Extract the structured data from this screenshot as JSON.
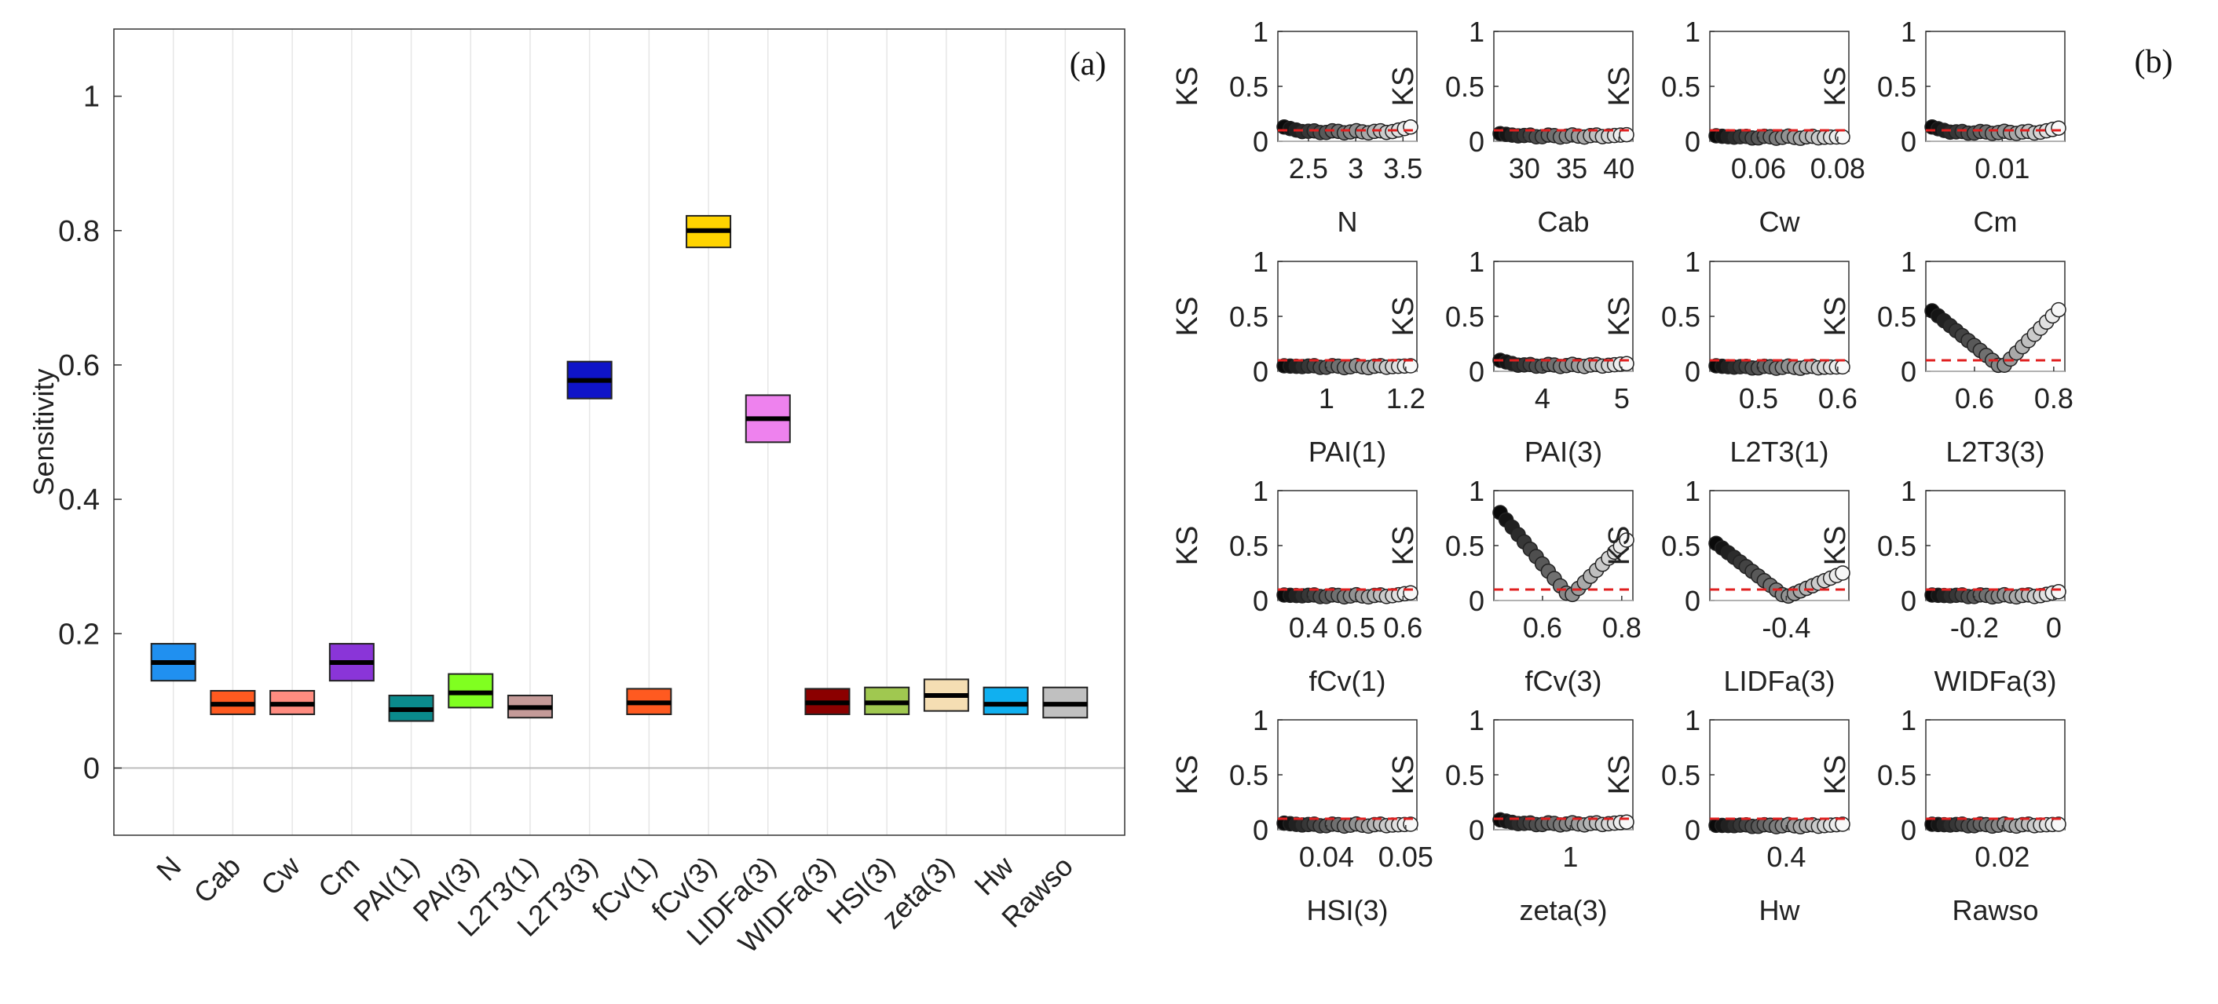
{
  "chart_data": [
    {
      "type": "box",
      "panel_label": "(a)",
      "ylabel": "Sensitivity",
      "ylim": [
        -0.1,
        1.1
      ],
      "yticks": [
        0,
        0.2,
        0.4,
        0.6,
        0.8,
        1
      ],
      "ytick_labels": [
        "0",
        "0.2",
        "0.4",
        "0.6",
        "0.8",
        "1"
      ],
      "grid": "vertical",
      "categories": [
        "N",
        "Cab",
        "Cw",
        "Cm",
        "PAI(1)",
        "PAI(3)",
        "L2T3(1)",
        "L2T3(3)",
        "fCv(1)",
        "fCv(3)",
        "LIDFa(3)",
        "WIDFa(3)",
        "HSI(3)",
        "zeta(3)",
        "Hw",
        "Rawso"
      ],
      "boxes": [
        {
          "low": 0.13,
          "median": 0.157,
          "high": 0.185,
          "color": "#2090f0"
        },
        {
          "low": 0.08,
          "median": 0.095,
          "high": 0.115,
          "color": "#ff5a20"
        },
        {
          "low": 0.08,
          "median": 0.095,
          "high": 0.115,
          "color": "#ff8c80"
        },
        {
          "low": 0.13,
          "median": 0.157,
          "high": 0.185,
          "color": "#8a35d8"
        },
        {
          "low": 0.07,
          "median": 0.087,
          "high": 0.108,
          "color": "#0a8a8c"
        },
        {
          "low": 0.09,
          "median": 0.112,
          "high": 0.14,
          "color": "#80ff20"
        },
        {
          "low": 0.075,
          "median": 0.09,
          "high": 0.108,
          "color": "#c49a98"
        },
        {
          "low": 0.55,
          "median": 0.577,
          "high": 0.605,
          "color": "#0f14c8"
        },
        {
          "low": 0.08,
          "median": 0.097,
          "high": 0.118,
          "color": "#ff5a20"
        },
        {
          "low": 0.775,
          "median": 0.8,
          "high": 0.822,
          "color": "#ffd400"
        },
        {
          "low": 0.485,
          "median": 0.52,
          "high": 0.555,
          "color": "#ee82ee"
        },
        {
          "low": 0.08,
          "median": 0.097,
          "high": 0.118,
          "color": "#8b0000"
        },
        {
          "low": 0.08,
          "median": 0.097,
          "high": 0.12,
          "color": "#a0c850"
        },
        {
          "low": 0.085,
          "median": 0.108,
          "high": 0.132,
          "color": "#f5deb3"
        },
        {
          "low": 0.08,
          "median": 0.095,
          "high": 0.12,
          "color": "#10b0f0"
        },
        {
          "low": 0.075,
          "median": 0.095,
          "high": 0.12,
          "color": "#c0c0c0"
        }
      ]
    },
    {
      "type": "scatter",
      "panel_label": "(b)",
      "ylabel": "KS",
      "ylim": [
        0,
        1
      ],
      "yticks": [
        "0",
        "0.5",
        "1"
      ],
      "threshold": 0.1,
      "threshold_color": "#e02020",
      "subplots": [
        {
          "name": "N",
          "xticks": [
            "2.5",
            "3",
            "3.5"
          ],
          "shape": "flat",
          "start": 0.13,
          "end": 0.13
        },
        {
          "name": "Cab",
          "xticks": [
            "30",
            "35",
            "40"
          ],
          "shape": "flat",
          "start": 0.07,
          "end": 0.06
        },
        {
          "name": "Cw",
          "xticks": [
            "0.06",
            "0.08"
          ],
          "shape": "flat",
          "start": 0.05,
          "end": 0.04
        },
        {
          "name": "Cm",
          "xticks": [
            "0.01"
          ],
          "shape": "flat",
          "start": 0.13,
          "end": 0.12
        },
        {
          "name": "PAI(1)",
          "xticks": [
            "1",
            "1.2"
          ],
          "shape": "flat",
          "start": 0.05,
          "end": 0.05
        },
        {
          "name": "PAI(3)",
          "xticks": [
            "4",
            "5"
          ],
          "shape": "flat",
          "start": 0.1,
          "end": 0.07
        },
        {
          "name": "L2T3(1)",
          "xticks": [
            "0.5",
            "0.6"
          ],
          "shape": "flat",
          "start": 0.05,
          "end": 0.04
        },
        {
          "name": "L2T3(3)",
          "xticks": [
            "0.6",
            "0.8"
          ],
          "shape": "v",
          "start": 0.55,
          "end": 0.56
        },
        {
          "name": "fCv(1)",
          "xticks": [
            "0.4",
            "0.5",
            "0.6"
          ],
          "shape": "flat",
          "start": 0.05,
          "end": 0.07
        },
        {
          "name": "fCv(3)",
          "xticks": [
            "0.6",
            "0.8"
          ],
          "shape": "v",
          "start": 0.8,
          "end": 0.55
        },
        {
          "name": "LIDFa(3)",
          "xticks": [
            "-0.4"
          ],
          "shape": "v",
          "start": 0.52,
          "end": 0.25
        },
        {
          "name": "WIDFa(3)",
          "xticks": [
            "-0.2",
            "0"
          ],
          "shape": "flat",
          "start": 0.05,
          "end": 0.08
        },
        {
          "name": "HSI(3)",
          "xticks": [
            "0.04",
            "0.05"
          ],
          "shape": "flat",
          "start": 0.06,
          "end": 0.05
        },
        {
          "name": "zeta(3)",
          "xticks": [
            "1"
          ],
          "shape": "flat",
          "start": 0.09,
          "end": 0.07
        },
        {
          "name": "Hw",
          "xticks": [
            "0.4"
          ],
          "shape": "flat",
          "start": 0.04,
          "end": 0.05
        },
        {
          "name": "Rawso",
          "xticks": [
            "0.02"
          ],
          "shape": "flat",
          "start": 0.05,
          "end": 0.05
        }
      ]
    }
  ]
}
